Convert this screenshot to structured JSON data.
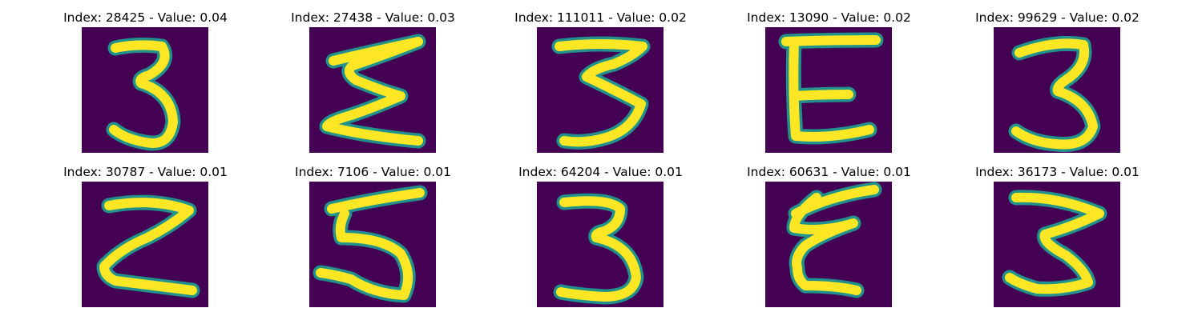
{
  "colors": {
    "background": "#440154",
    "mid": "#21918c",
    "stroke": "#fde725"
  },
  "panels": [
    {
      "title": "Index: 28425 - Value: 0.04",
      "index": 28425,
      "value": 0.04,
      "glyph": "3"
    },
    {
      "title": "Index: 27438 - Value: 0.03",
      "index": 27438,
      "value": 0.03,
      "glyph": "sigma"
    },
    {
      "title": "Index: 111011 - Value: 0.02",
      "index": 111011,
      "value": 0.02,
      "glyph": "3-flat"
    },
    {
      "title": "Index: 13090 - Value: 0.02",
      "index": 13090,
      "value": 0.02,
      "glyph": "E"
    },
    {
      "title": "Index: 99629 - Value: 0.02",
      "index": 99629,
      "value": 0.02,
      "glyph": "3-round"
    },
    {
      "title": "Index: 30787 - Value: 0.01",
      "index": 30787,
      "value": 0.01,
      "glyph": "z"
    },
    {
      "title": "Index: 7106 - Value: 0.01",
      "index": 7106,
      "value": 0.01,
      "glyph": "5"
    },
    {
      "title": "Index: 64204 - Value: 0.01",
      "index": 64204,
      "value": 0.01,
      "glyph": "3-tall"
    },
    {
      "title": "Index: 60631 - Value: 0.01",
      "index": 60631,
      "value": 0.01,
      "glyph": "epsilon"
    },
    {
      "title": "Index: 36173 - Value: 0.01",
      "index": 36173,
      "value": 0.01,
      "glyph": "3-zig"
    }
  ]
}
